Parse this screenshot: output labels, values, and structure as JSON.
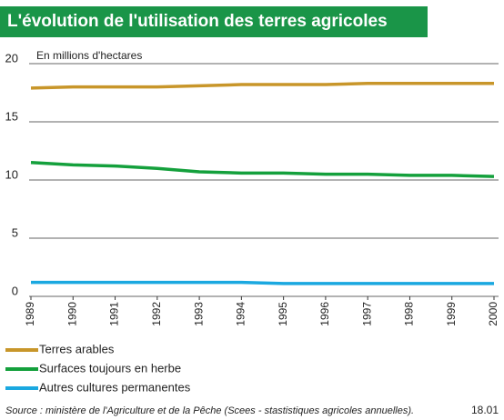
{
  "chart_data": {
    "type": "line",
    "title": "L'évolution de l'utilisation des terres agricoles",
    "ylabel": "En millions d'hectares",
    "categories": [
      "1989",
      "1990",
      "1991",
      "1992",
      "1993",
      "1994",
      "1995",
      "1996",
      "1997",
      "1998",
      "1999",
      "2000"
    ],
    "series": [
      {
        "name": "Terres arables",
        "color": "#c8962a",
        "values": [
          17.9,
          18.0,
          18.0,
          18.0,
          18.1,
          18.2,
          18.2,
          18.2,
          18.3,
          18.3,
          18.3,
          18.3
        ]
      },
      {
        "name": "Surfaces toujours en herbe",
        "color": "#14a03c",
        "values": [
          11.5,
          11.3,
          11.2,
          11.0,
          10.7,
          10.6,
          10.6,
          10.5,
          10.5,
          10.4,
          10.4,
          10.3
        ]
      },
      {
        "name": "Autres cultures permanentes",
        "color": "#1aa8e0",
        "values": [
          1.2,
          1.2,
          1.2,
          1.2,
          1.2,
          1.2,
          1.1,
          1.1,
          1.1,
          1.1,
          1.1,
          1.1
        ]
      }
    ],
    "ylim": [
      0,
      20
    ],
    "yticks": [
      0,
      5,
      10,
      15,
      20
    ],
    "grid": true,
    "source": "Source : ministère de l'Agriculture et de la Pêche (Scees - stastistiques agricoles annuelles).",
    "code": "18.01"
  }
}
